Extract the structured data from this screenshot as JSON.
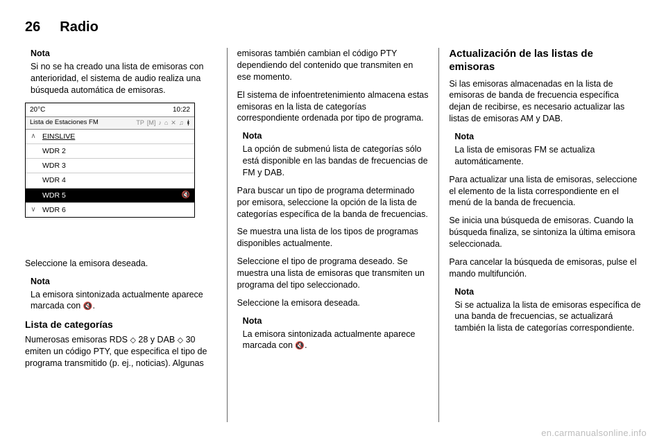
{
  "header": {
    "page_number": "26",
    "section": "Radio"
  },
  "col1": {
    "note1_heading": "Nota",
    "note1_body": "Si no se ha creado una lista de emisoras con anterioridad, el sistema de audio realiza una búsqueda automática de emisoras.",
    "radio": {
      "temp": "20°C",
      "time": "10:22",
      "list_title": "Lista de Estaciones FM",
      "icons": [
        "TP",
        "[M]",
        "♪",
        "⌂",
        "✕",
        "♫"
      ],
      "bt_icon": "ᚼ",
      "rows": [
        {
          "arrow": "∧",
          "label": "EINSLIVE",
          "selected": false,
          "playing": false
        },
        {
          "arrow": "",
          "label": "WDR 2",
          "selected": false,
          "playing": false
        },
        {
          "arrow": "",
          "label": "WDR 3",
          "selected": false,
          "playing": false
        },
        {
          "arrow": "",
          "label": "WDR 4",
          "selected": false,
          "playing": false
        },
        {
          "arrow": "",
          "label": "WDR 5",
          "selected": true,
          "playing": true
        },
        {
          "arrow": "∨",
          "label": "WDR 6",
          "selected": false,
          "playing": false
        }
      ]
    },
    "after_image": "Seleccione la emisora deseada.",
    "note2_heading": "Nota",
    "note2_body_a": "La emisora sintonizada actualmente aparece marcada con ",
    "note2_body_b": ".",
    "sub_heading": "Lista de categorías",
    "p2_a": "Numerosas emisoras RDS ",
    "p2_b": " 28 y DAB ",
    "p2_c": " 30 emiten un código PTY, que especifica el tipo de programa transmitido (p. ej., noticias). Algunas"
  },
  "col2": {
    "p1": "emisoras también cambian el código PTY dependiendo del contenido que transmiten en ese momento.",
    "p2": "El sistema de infoentretenimiento almacena estas emisoras en la lista de categorías correspondiente ordenada por tipo de programa.",
    "note1_heading": "Nota",
    "note1_body": "La opción de submenú lista de categorías sólo está disponible en las bandas de frecuencias de FM y DAB.",
    "p3": "Para buscar un tipo de programa determinado por emisora, seleccione la opción de la lista de categorías específica de la banda de frecuencias.",
    "p4": "Se muestra una lista de los tipos de programas disponibles actualmente.",
    "p5": "Seleccione el tipo de programa deseado. Se muestra una lista de emisoras que transmiten un programa del tipo seleccionado.",
    "p6": "Seleccione la emisora deseada.",
    "note2_heading": "Nota",
    "note2_body_a": "La emisora sintonizada actualmente aparece marcada con ",
    "note2_body_b": "."
  },
  "col3": {
    "big_heading": "Actualización de las listas de emisoras",
    "p1": "Si las emisoras almacenadas en la lista de emisoras de banda de frecuencia específica dejan de recibirse, es necesario actualizar las listas de emisoras AM y DAB.",
    "note1_heading": "Nota",
    "note1_body": "La lista de emisoras FM se actualiza automáticamente.",
    "p2": "Para actualizar una lista de emisoras, seleccione el elemento de la lista correspondiente en el menú de la banda de frecuencia.",
    "p3": "Se inicia una búsqueda de emisoras. Cuando la búsqueda finaliza, se sintoniza la última emisora seleccionada.",
    "p4": "Para cancelar la búsqueda de emisoras, pulse el mando multifunción.",
    "note2_heading": "Nota",
    "note2_body": "Si se actualiza la lista de emisoras específica de una banda de frecuencias, se actualizará también la lista de categorías correspondiente."
  },
  "watermark": "en.carmanualsonline.info",
  "glyphs": {
    "ref": "◇",
    "sound": "🔇"
  }
}
